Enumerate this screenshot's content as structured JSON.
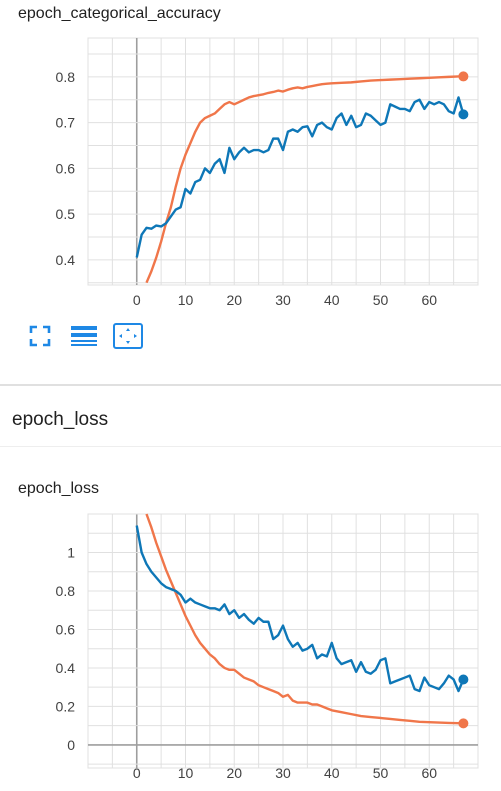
{
  "colors": {
    "train": "#f0764a",
    "validation": "#0e77b7",
    "toolbar": "#1e88e5",
    "grid": "#e0e0e0",
    "axis": "#9e9e9e"
  },
  "toolbar": {
    "icons": [
      "fullscreen-icon",
      "data-table-icon",
      "fit-domain-icon"
    ]
  },
  "section": {
    "title": "epoch_loss"
  },
  "chart_data": [
    {
      "type": "line",
      "title": "epoch_categorical_accuracy",
      "xlabel": "",
      "ylabel": "",
      "xlim": [
        -10,
        70
      ],
      "ylim": [
        0.345,
        0.885
      ],
      "xticks": [
        0,
        10,
        20,
        30,
        40,
        50,
        60
      ],
      "yticks": [
        0.4,
        0.5,
        0.6,
        0.7,
        0.8
      ],
      "ytick_labels": [
        "0.4",
        "0.5",
        "0.6",
        "0.7",
        "0.8"
      ],
      "grid": true,
      "series": [
        {
          "key": "train",
          "x": [
            2,
            3,
            4,
            5,
            6,
            7,
            8,
            9,
            10,
            11,
            12,
            13,
            14,
            15,
            16,
            17,
            18,
            19,
            20,
            21,
            22,
            23,
            24,
            25,
            26,
            27,
            28,
            29,
            30,
            31,
            32,
            33,
            34,
            35,
            36,
            37,
            38,
            39,
            40,
            42,
            44,
            46,
            48,
            50,
            52,
            54,
            56,
            58,
            60,
            62,
            64,
            66,
            67
          ],
          "values": [
            0.35,
            0.375,
            0.405,
            0.44,
            0.48,
            0.515,
            0.56,
            0.6,
            0.63,
            0.655,
            0.68,
            0.7,
            0.71,
            0.715,
            0.72,
            0.73,
            0.74,
            0.745,
            0.74,
            0.745,
            0.75,
            0.755,
            0.758,
            0.76,
            0.762,
            0.765,
            0.767,
            0.77,
            0.768,
            0.772,
            0.775,
            0.777,
            0.775,
            0.778,
            0.78,
            0.782,
            0.784,
            0.785,
            0.786,
            0.787,
            0.788,
            0.79,
            0.792,
            0.793,
            0.794,
            0.795,
            0.796,
            0.797,
            0.798,
            0.799,
            0.8,
            0.801,
            0.801
          ]
        },
        {
          "key": "validation",
          "x": [
            0,
            1,
            2,
            3,
            4,
            5,
            6,
            7,
            8,
            9,
            10,
            11,
            12,
            13,
            14,
            15,
            16,
            17,
            18,
            19,
            20,
            21,
            22,
            23,
            24,
            25,
            26,
            27,
            28,
            29,
            30,
            31,
            32,
            33,
            34,
            35,
            36,
            37,
            38,
            39,
            40,
            41,
            42,
            43,
            44,
            45,
            46,
            47,
            48,
            49,
            50,
            51,
            52,
            53,
            54,
            55,
            56,
            57,
            58,
            59,
            60,
            61,
            62,
            63,
            64,
            65,
            66,
            67
          ],
          "values": [
            0.405,
            0.455,
            0.47,
            0.468,
            0.475,
            0.473,
            0.48,
            0.495,
            0.51,
            0.515,
            0.555,
            0.545,
            0.57,
            0.575,
            0.6,
            0.59,
            0.61,
            0.62,
            0.59,
            0.645,
            0.62,
            0.635,
            0.645,
            0.635,
            0.64,
            0.64,
            0.635,
            0.64,
            0.665,
            0.665,
            0.64,
            0.68,
            0.685,
            0.68,
            0.69,
            0.692,
            0.67,
            0.695,
            0.7,
            0.69,
            0.685,
            0.71,
            0.72,
            0.695,
            0.715,
            0.69,
            0.695,
            0.72,
            0.715,
            0.705,
            0.695,
            0.7,
            0.74,
            0.735,
            0.73,
            0.73,
            0.725,
            0.745,
            0.75,
            0.73,
            0.745,
            0.74,
            0.745,
            0.74,
            0.725,
            0.72,
            0.755,
            0.718
          ]
        }
      ]
    },
    {
      "type": "line",
      "title": "epoch_loss",
      "xlabel": "",
      "ylabel": "",
      "xlim": [
        -10,
        70
      ],
      "ylim": [
        -0.12,
        1.2
      ],
      "xticks": [
        0,
        10,
        20,
        30,
        40,
        50,
        60
      ],
      "yticks": [
        0,
        0.2,
        0.4,
        0.6,
        0.8,
        1
      ],
      "ytick_labels": [
        "0",
        "0.2",
        "0.4",
        "0.6",
        "0.8",
        "1"
      ],
      "grid": true,
      "series": [
        {
          "key": "train",
          "x": [
            2,
            3,
            4,
            5,
            6,
            7,
            8,
            9,
            10,
            11,
            12,
            13,
            14,
            15,
            16,
            17,
            18,
            19,
            20,
            21,
            22,
            23,
            24,
            25,
            26,
            27,
            28,
            29,
            30,
            31,
            32,
            33,
            34,
            35,
            36,
            37,
            38,
            39,
            40,
            42,
            44,
            46,
            48,
            50,
            52,
            54,
            56,
            58,
            60,
            62,
            64,
            66,
            67
          ],
          "values": [
            1.2,
            1.13,
            1.05,
            0.98,
            0.91,
            0.85,
            0.79,
            0.73,
            0.67,
            0.62,
            0.57,
            0.53,
            0.5,
            0.47,
            0.45,
            0.42,
            0.4,
            0.39,
            0.39,
            0.37,
            0.35,
            0.34,
            0.33,
            0.31,
            0.3,
            0.29,
            0.28,
            0.27,
            0.25,
            0.26,
            0.23,
            0.22,
            0.22,
            0.22,
            0.21,
            0.21,
            0.2,
            0.19,
            0.18,
            0.17,
            0.16,
            0.15,
            0.145,
            0.14,
            0.135,
            0.13,
            0.125,
            0.12,
            0.118,
            0.116,
            0.114,
            0.113,
            0.112
          ]
        },
        {
          "key": "validation",
          "x": [
            0,
            1,
            2,
            3,
            4,
            5,
            6,
            7,
            8,
            9,
            10,
            11,
            12,
            13,
            14,
            15,
            16,
            17,
            18,
            19,
            20,
            21,
            22,
            23,
            24,
            25,
            26,
            27,
            28,
            29,
            30,
            31,
            32,
            33,
            34,
            35,
            36,
            37,
            38,
            39,
            40,
            41,
            42,
            43,
            44,
            45,
            46,
            47,
            48,
            49,
            50,
            51,
            52,
            53,
            54,
            55,
            56,
            57,
            58,
            59,
            60,
            61,
            62,
            63,
            64,
            65,
            66,
            67
          ],
          "values": [
            1.14,
            1.0,
            0.94,
            0.9,
            0.87,
            0.84,
            0.82,
            0.81,
            0.8,
            0.78,
            0.74,
            0.76,
            0.74,
            0.73,
            0.72,
            0.71,
            0.71,
            0.7,
            0.73,
            0.68,
            0.7,
            0.66,
            0.68,
            0.65,
            0.63,
            0.66,
            0.64,
            0.64,
            0.55,
            0.57,
            0.62,
            0.55,
            0.51,
            0.53,
            0.49,
            0.5,
            0.52,
            0.45,
            0.47,
            0.46,
            0.53,
            0.45,
            0.42,
            0.43,
            0.44,
            0.38,
            0.43,
            0.38,
            0.37,
            0.39,
            0.44,
            0.45,
            0.32,
            0.33,
            0.34,
            0.35,
            0.36,
            0.29,
            0.28,
            0.35,
            0.31,
            0.3,
            0.29,
            0.32,
            0.36,
            0.34,
            0.28,
            0.34
          ]
        }
      ]
    }
  ]
}
